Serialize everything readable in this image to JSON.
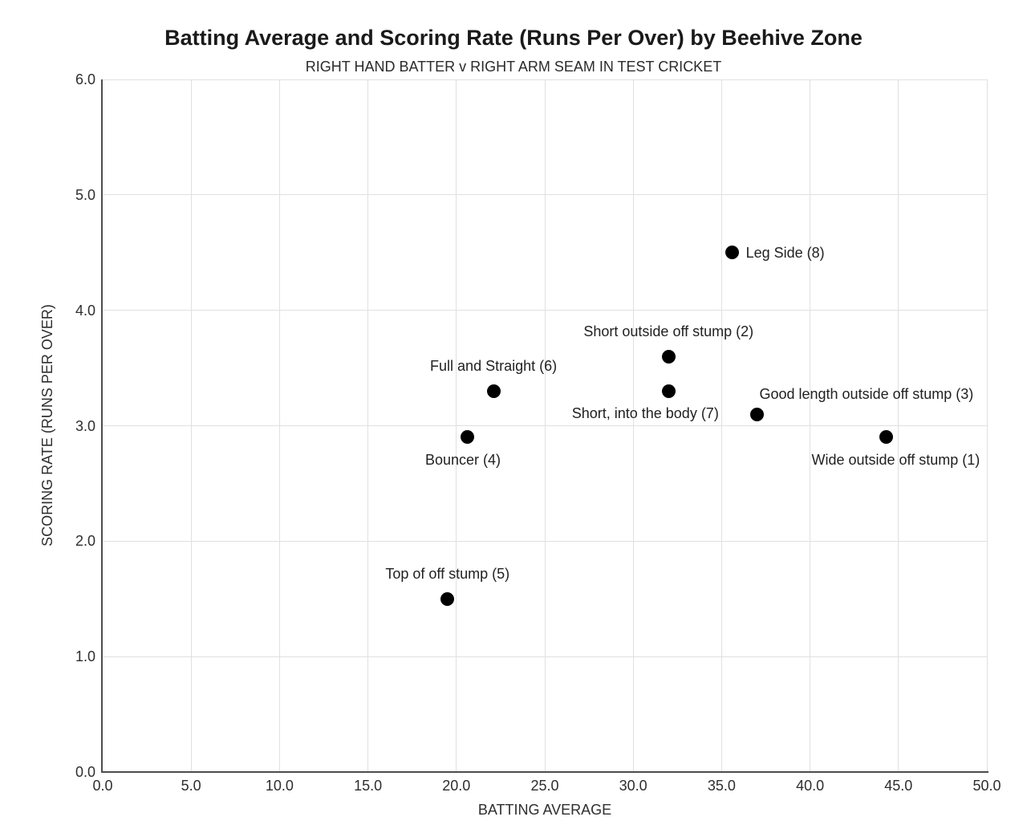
{
  "chart_data": {
    "type": "scatter",
    "title": "Batting Average and Scoring Rate (Runs Per Over) by Beehive Zone",
    "subtitle": "RIGHT HAND BATTER v RIGHT ARM SEAM IN TEST CRICKET",
    "xlabel": "BATTING AVERAGE",
    "ylabel": "SCORING RATE (RUNS PER OVER)",
    "xlim": [
      0,
      50
    ],
    "ylim": [
      0,
      6
    ],
    "x_ticks": [
      0,
      5,
      10,
      15,
      20,
      25,
      30,
      35,
      40,
      45,
      50
    ],
    "x_tick_labels": [
      "0.0",
      "5.0",
      "10.0",
      "15.0",
      "20.0",
      "25.0",
      "30.0",
      "35.0",
      "40.0",
      "45.0",
      "50.0"
    ],
    "y_ticks": [
      0,
      1,
      2,
      3,
      4,
      5,
      6
    ],
    "y_tick_labels": [
      "0.0",
      "1.0",
      "2.0",
      "3.0",
      "4.0",
      "5.0",
      "6.0"
    ],
    "grid": true,
    "legend": "none",
    "colors": {
      "point": "#000000",
      "grid": "#e0e0e0",
      "axis": "#4d4d4d",
      "text": "#212121"
    },
    "points": [
      {
        "label": "Wide outside off stump (1)",
        "x": 44.3,
        "y": 2.9,
        "label_pos": "below",
        "label_dx": 12
      },
      {
        "label": "Short outside off stump (2)",
        "x": 32.0,
        "y": 3.6,
        "label_pos": "above",
        "label_dx": 0
      },
      {
        "label": "Good length outside off stump (3)",
        "x": 37.0,
        "y": 3.1,
        "label_pos": "above-right",
        "label_dx": 0
      },
      {
        "label": "Bouncer (4)",
        "x": 20.6,
        "y": 2.9,
        "label_pos": "below",
        "label_dx": -5
      },
      {
        "label": "Top of off stump (5)",
        "x": 19.5,
        "y": 1.5,
        "label_pos": "above",
        "label_dx": 0
      },
      {
        "label": "Full and Straight (6)",
        "x": 22.1,
        "y": 3.3,
        "label_pos": "above",
        "label_dx": 0
      },
      {
        "label": "Short, into the body (7)",
        "x": 32.0,
        "y": 3.3,
        "label_pos": "below",
        "label_dx": -29
      },
      {
        "label": "Leg Side (8)",
        "x": 35.6,
        "y": 4.5,
        "label_pos": "right",
        "label_dx": 0
      }
    ]
  }
}
